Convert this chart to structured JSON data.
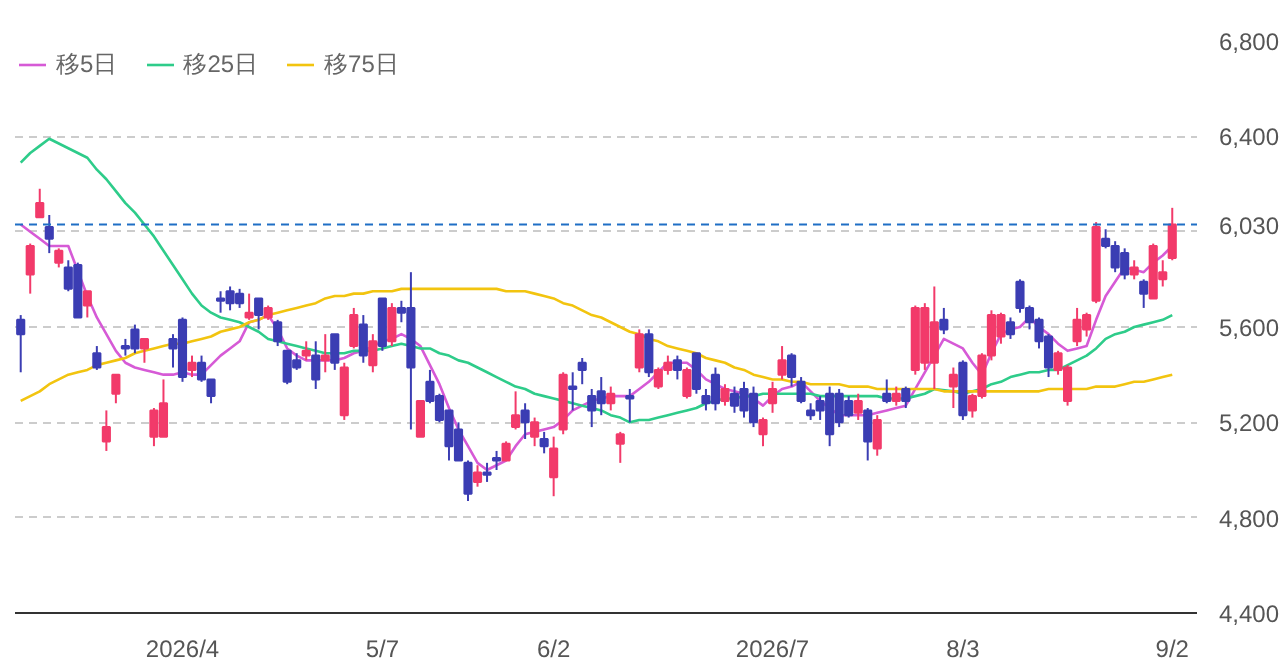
{
  "chart_data": {
    "type": "candlestick",
    "categories": [
      null,
      null,
      null,
      null,
      null,
      null,
      null,
      null,
      null,
      null,
      null,
      null,
      null,
      null,
      null,
      null,
      null,
      "2026/4",
      null,
      null,
      null,
      null,
      null,
      null,
      null,
      null,
      null,
      null,
      null,
      null,
      null,
      null,
      null,
      null,
      null,
      null,
      null,
      null,
      "5/7",
      null,
      null,
      null,
      null,
      null,
      null,
      null,
      null,
      null,
      null,
      null,
      null,
      null,
      null,
      null,
      null,
      null,
      "6/2",
      null,
      null,
      null,
      null,
      null,
      null,
      null,
      null,
      null,
      null,
      null,
      null,
      null,
      null,
      null,
      null,
      null,
      null,
      null,
      null,
      null,
      null,
      "2026/7",
      null,
      null,
      null,
      null,
      null,
      null,
      null,
      null,
      null,
      null,
      null,
      null,
      null,
      null,
      null,
      null,
      null,
      null,
      null,
      "8/3",
      null,
      null,
      null,
      null,
      null,
      null,
      null,
      null,
      null,
      null,
      null,
      null,
      null,
      null,
      null,
      null,
      null,
      null,
      null,
      null,
      null,
      "9/2"
    ],
    "ohlc": [
      [
        5630,
        5650,
        5410,
        5570
      ],
      [
        5820,
        5950,
        5740,
        5940
      ],
      [
        6060,
        6180,
        6060,
        6120
      ],
      [
        6020,
        6070,
        5910,
        5970
      ],
      [
        5870,
        5930,
        5850,
        5920
      ],
      [
        5850,
        5880,
        5750,
        5760
      ],
      [
        5860,
        5870,
        5640,
        5640
      ],
      [
        5690,
        5750,
        5640,
        5750
      ],
      [
        5490,
        5520,
        5420,
        5430
      ],
      [
        5120,
        5250,
        5080,
        5180
      ],
      [
        5320,
        5400,
        5280,
        5400
      ],
      [
        5520,
        5550,
        5480,
        5510
      ],
      [
        5590,
        5610,
        5490,
        5510
      ],
      [
        5510,
        5550,
        5450,
        5550
      ],
      [
        5140,
        5260,
        5100,
        5250
      ],
      [
        5140,
        5380,
        5140,
        5280
      ],
      [
        5550,
        5570,
        5430,
        5510
      ],
      [
        5630,
        5640,
        5370,
        5390
      ],
      [
        5420,
        5480,
        5390,
        5450
      ],
      [
        5450,
        5480,
        5370,
        5380
      ],
      [
        5380,
        5380,
        5280,
        5310
      ],
      [
        5720,
        5750,
        5660,
        5710
      ],
      [
        5750,
        5770,
        5670,
        5700
      ],
      [
        5740,
        5760,
        5680,
        5700
      ],
      [
        5640,
        5740,
        5630,
        5660
      ],
      [
        5720,
        5720,
        5590,
        5650
      ],
      [
        5640,
        5690,
        5630,
        5680
      ],
      [
        5620,
        5630,
        5520,
        5540
      ],
      [
        5500,
        5500,
        5360,
        5370
      ],
      [
        5460,
        5490,
        5420,
        5430
      ],
      [
        5480,
        5540,
        5460,
        5500
      ],
      [
        5480,
        5540,
        5340,
        5380
      ],
      [
        5460,
        5570,
        5410,
        5480
      ],
      [
        5570,
        5570,
        5420,
        5450
      ],
      [
        5230,
        5450,
        5210,
        5430
      ],
      [
        5520,
        5680,
        5510,
        5650
      ],
      [
        5610,
        5650,
        5450,
        5480
      ],
      [
        5440,
        5570,
        5410,
        5540
      ],
      [
        5720,
        5720,
        5500,
        5520
      ],
      [
        5540,
        5700,
        5520,
        5680
      ],
      [
        5680,
        5710,
        5620,
        5660
      ],
      [
        5680,
        5830,
        5170,
        5430
      ],
      [
        5140,
        5290,
        5140,
        5290
      ],
      [
        5370,
        5420,
        5280,
        5290
      ],
      [
        5310,
        5320,
        5200,
        5210
      ],
      [
        5250,
        5250,
        5040,
        5100
      ],
      [
        5170,
        5200,
        5040,
        5040
      ],
      [
        5030,
        5040,
        4870,
        4900
      ],
      [
        4950,
        5020,
        4930,
        4990
      ],
      [
        4990,
        5030,
        4950,
        4980
      ],
      [
        5050,
        5080,
        5000,
        5040
      ],
      [
        5040,
        5120,
        5040,
        5110
      ],
      [
        5180,
        5330,
        5170,
        5230
      ],
      [
        5250,
        5280,
        5130,
        5200
      ],
      [
        5140,
        5220,
        5100,
        5200
      ],
      [
        5130,
        5160,
        5070,
        5100
      ],
      [
        4970,
        5140,
        4890,
        5090
      ],
      [
        5170,
        5410,
        5150,
        5400
      ],
      [
        5350,
        5410,
        5250,
        5340
      ],
      [
        5450,
        5470,
        5360,
        5420
      ],
      [
        5310,
        5340,
        5180,
        5250
      ],
      [
        5330,
        5390,
        5230,
        5280
      ],
      [
        5280,
        5350,
        5250,
        5320
      ],
      [
        5110,
        5160,
        5030,
        5150
      ],
      [
        5310,
        5340,
        5200,
        5300
      ],
      [
        5430,
        5590,
        5410,
        5570
      ],
      [
        5570,
        5590,
        5390,
        5410
      ],
      [
        5350,
        5430,
        5340,
        5420
      ],
      [
        5420,
        5480,
        5400,
        5450
      ],
      [
        5460,
        5480,
        5380,
        5420
      ],
      [
        5310,
        5430,
        5300,
        5420
      ],
      [
        5490,
        5490,
        5320,
        5340
      ],
      [
        5310,
        5340,
        5250,
        5280
      ],
      [
        5400,
        5430,
        5250,
        5280
      ],
      [
        5290,
        5360,
        5270,
        5340
      ],
      [
        5320,
        5350,
        5240,
        5270
      ],
      [
        5340,
        5370,
        5220,
        5250
      ],
      [
        5320,
        5350,
        5180,
        5200
      ],
      [
        5150,
        5220,
        5100,
        5210
      ],
      [
        5280,
        5370,
        5240,
        5340
      ],
      [
        5400,
        5520,
        5380,
        5460
      ],
      [
        5480,
        5490,
        5350,
        5390
      ],
      [
        5370,
        5390,
        5280,
        5290
      ],
      [
        5250,
        5280,
        5210,
        5230
      ],
      [
        5290,
        5310,
        5210,
        5250
      ],
      [
        5320,
        5350,
        5100,
        5150
      ],
      [
        5320,
        5340,
        5180,
        5200
      ],
      [
        5290,
        5310,
        5220,
        5230
      ],
      [
        5240,
        5320,
        5210,
        5290
      ],
      [
        5250,
        5260,
        5040,
        5120
      ],
      [
        5090,
        5230,
        5060,
        5210
      ],
      [
        5320,
        5380,
        5280,
        5290
      ],
      [
        5290,
        5350,
        5270,
        5320
      ],
      [
        5340,
        5350,
        5260,
        5290
      ],
      [
        5420,
        5690,
        5400,
        5680
      ],
      [
        5450,
        5700,
        5420,
        5680
      ],
      [
        5450,
        5770,
        5340,
        5620
      ],
      [
        5630,
        5680,
        5570,
        5590
      ],
      [
        5350,
        5430,
        5260,
        5400
      ],
      [
        5450,
        5460,
        5210,
        5230
      ],
      [
        5250,
        5320,
        5220,
        5310
      ],
      [
        5310,
        5490,
        5300,
        5480
      ],
      [
        5480,
        5670,
        5460,
        5650
      ],
      [
        5560,
        5660,
        5530,
        5650
      ],
      [
        5620,
        5640,
        5550,
        5570
      ],
      [
        5790,
        5800,
        5660,
        5680
      ],
      [
        5680,
        5690,
        5590,
        5620
      ],
      [
        5630,
        5640,
        5510,
        5540
      ],
      [
        5560,
        5570,
        5390,
        5430
      ],
      [
        5420,
        5500,
        5400,
        5490
      ],
      [
        5290,
        5440,
        5270,
        5430
      ],
      [
        5540,
        5680,
        5520,
        5630
      ],
      [
        5590,
        5660,
        5560,
        5650
      ],
      [
        5710,
        6040,
        5700,
        6020
      ],
      [
        5970,
        6010,
        5930,
        5940
      ],
      [
        5940,
        5960,
        5830,
        5850
      ],
      [
        5910,
        5930,
        5800,
        5820
      ],
      [
        5820,
        5880,
        5800,
        5850
      ],
      [
        5790,
        5800,
        5680,
        5740
      ],
      [
        5720,
        5950,
        5720,
        5940
      ],
      [
        5800,
        5880,
        5770,
        5830
      ],
      [
        5890,
        6100,
        5880,
        6030
      ]
    ],
    "colors": [
      "#3b3db3",
      "#f23a6a",
      "#f23a6a",
      "#3b3db3",
      "#f23a6a",
      "#3b3db3",
      "#3b3db3",
      "#f23a6a",
      "#3b3db3",
      "#f23a6a",
      "#f23a6a",
      "#3b3db3",
      "#3b3db3",
      "#f23a6a",
      "#f23a6a",
      "#f23a6a",
      "#3b3db3",
      "#3b3db3",
      "#f23a6a",
      "#3b3db3",
      "#3b3db3",
      "#3b3db3",
      "#3b3db3",
      "#3b3db3",
      "#f23a6a",
      "#3b3db3",
      "#f23a6a",
      "#3b3db3",
      "#3b3db3",
      "#3b3db3",
      "#f23a6a",
      "#3b3db3",
      "#f23a6a",
      "#3b3db3",
      "#f23a6a",
      "#f23a6a",
      "#3b3db3",
      "#f23a6a",
      "#3b3db3",
      "#f23a6a",
      "#3b3db3",
      "#3b3db3",
      "#f23a6a",
      "#3b3db3",
      "#3b3db3",
      "#3b3db3",
      "#3b3db3",
      "#3b3db3",
      "#f23a6a",
      "#3b3db3",
      "#3b3db3",
      "#f23a6a",
      "#f23a6a",
      "#3b3db3",
      "#f23a6a",
      "#3b3db3",
      "#f23a6a",
      "#f23a6a",
      "#3b3db3",
      "#3b3db3",
      "#3b3db3",
      "#3b3db3",
      "#f23a6a",
      "#f23a6a",
      "#3b3db3",
      "#f23a6a",
      "#3b3db3",
      "#f23a6a",
      "#f23a6a",
      "#3b3db3",
      "#f23a6a",
      "#3b3db3",
      "#3b3db3",
      "#3b3db3",
      "#f23a6a",
      "#3b3db3",
      "#3b3db3",
      "#3b3db3",
      "#f23a6a",
      "#f23a6a",
      "#f23a6a",
      "#3b3db3",
      "#3b3db3",
      "#3b3db3",
      "#3b3db3",
      "#3b3db3",
      "#3b3db3",
      "#3b3db3",
      "#f23a6a",
      "#3b3db3",
      "#f23a6a",
      "#3b3db3",
      "#f23a6a",
      "#3b3db3",
      "#f23a6a",
      "#f23a6a",
      "#f23a6a",
      "#3b3db3",
      "#f23a6a",
      "#3b3db3",
      "#f23a6a",
      "#f23a6a",
      "#f23a6a",
      "#f23a6a",
      "#3b3db3",
      "#3b3db3",
      "#3b3db3",
      "#3b3db3",
      "#3b3db3",
      "#f23a6a",
      "#f23a6a",
      "#f23a6a",
      "#f23a6a",
      "#f23a6a",
      "#3b3db3",
      "#3b3db3",
      "#3b3db3",
      "#f23a6a",
      "#3b3db3",
      "#f23a6a",
      "#f23a6a",
      "#f23a6a"
    ],
    "series": [
      {
        "type": "line",
        "name": "移5日",
        "color": "#d65ad6",
        "values": [
          6030,
          6000,
          5970,
          5940,
          5940,
          5940,
          null,
          5730,
          5640,
          5570,
          5500,
          5450,
          5430,
          5420,
          5410,
          5400,
          5400,
          5410,
          5400,
          5400,
          5440,
          5480,
          5510,
          5540,
          5620,
          5630,
          5650,
          5590,
          5510,
          5480,
          5460,
          5460,
          5460,
          5460,
          5470,
          5490,
          5500,
          5520,
          5540,
          5550,
          5570,
          5550,
          5520,
          5440,
          5360,
          5260,
          5170,
          5100,
          5030,
          5000,
          5020,
          5040,
          5100,
          5150,
          5160,
          5170,
          5180,
          5210,
          5250,
          5270,
          5290,
          5300,
          5310,
          5310,
          5310,
          5340,
          5370,
          5410,
          5450,
          5450,
          5450,
          5420,
          5380,
          5360,
          5340,
          5330,
          5320,
          5300,
          5270,
          5310,
          5340,
          5350,
          5370,
          5330,
          5290,
          5260,
          5230,
          5230,
          5230,
          5230,
          5240,
          5250,
          5260,
          5270,
          5340,
          5410,
          5480,
          5550,
          5530,
          5510,
          5450,
          5400,
          5490,
          5570,
          5590,
          5600,
          5640,
          5600,
          5570,
          5530,
          5500,
          5510,
          5520,
          5630,
          5730,
          5790,
          5850,
          5840,
          5830,
          5870,
          5900,
          5940
        ]
      },
      {
        "type": "line",
        "name": "移25日",
        "color": "#2ecc8a",
        "values": [
          6290,
          6330,
          6360,
          6390,
          6370,
          6350,
          6330,
          6310,
          6260,
          6220,
          6170,
          6120,
          6080,
          6030,
          5980,
          5920,
          5860,
          5800,
          5740,
          5690,
          5660,
          5640,
          5630,
          5620,
          5600,
          5580,
          5550,
          5540,
          5530,
          5520,
          5510,
          5500,
          5490,
          5490,
          5490,
          5500,
          5500,
          5500,
          5510,
          5520,
          5530,
          5520,
          5510,
          5510,
          5490,
          5480,
          5460,
          5450,
          5430,
          5410,
          5390,
          5370,
          5350,
          5340,
          5320,
          5310,
          5300,
          5290,
          5280,
          5270,
          5260,
          5250,
          5230,
          5220,
          5200,
          5210,
          5210,
          5220,
          5230,
          5240,
          5250,
          5260,
          5280,
          5290,
          5300,
          5300,
          5310,
          5310,
          5320,
          5320,
          5320,
          5320,
          5320,
          5320,
          5310,
          5310,
          5310,
          5310,
          5310,
          5310,
          5310,
          5300,
          5300,
          5300,
          5310,
          5320,
          5340,
          null,
          5330,
          5320,
          5330,
          5340,
          5360,
          5370,
          5390,
          5400,
          5410,
          5410,
          5420,
          5420,
          5440,
          5460,
          5480,
          5510,
          5550,
          5570,
          5580,
          5600,
          5610,
          5620,
          5630,
          5650
        ]
      },
      {
        "type": "line",
        "name": "移75日",
        "color": "#f2c40f",
        "values": [
          5290,
          5310,
          5330,
          5360,
          5380,
          5400,
          5410,
          5420,
          5440,
          5450,
          5460,
          5470,
          5490,
          5500,
          5510,
          5520,
          5530,
          5530,
          5540,
          5550,
          5560,
          5580,
          5590,
          5600,
          5620,
          5630,
          5650,
          5660,
          5670,
          5680,
          5690,
          5700,
          5720,
          5730,
          5730,
          5740,
          5740,
          5750,
          5750,
          5750,
          5760,
          5760,
          5760,
          5760,
          5760,
          5760,
          5760,
          5760,
          5760,
          5760,
          5760,
          5750,
          5750,
          5750,
          5740,
          5730,
          5720,
          5700,
          5690,
          5670,
          5650,
          5640,
          5620,
          5600,
          5580,
          5570,
          5550,
          5540,
          5520,
          5510,
          5500,
          5490,
          5470,
          5460,
          5450,
          5430,
          5420,
          5400,
          5390,
          5380,
          5380,
          5370,
          5370,
          5360,
          5360,
          5360,
          5360,
          5350,
          5350,
          5350,
          5340,
          5340,
          5340,
          5340,
          5340,
          5340,
          5340,
          5330,
          5330,
          5330,
          5330,
          5330,
          5330,
          5330,
          5330,
          5330,
          5330,
          5330,
          5340,
          5340,
          5340,
          5340,
          5340,
          5350,
          5350,
          5350,
          5360,
          5370,
          5370,
          5380,
          5390,
          5400
        ]
      }
    ],
    "ylim": [
      4400,
      6800
    ],
    "yticks": [
      {
        "value": 4400,
        "label": "4,400"
      },
      {
        "value": 4800,
        "label": "4,800"
      },
      {
        "value": 5200,
        "label": "5,200"
      },
      {
        "value": 5600,
        "label": "5,600"
      },
      {
        "value": 6000,
        "label": null
      },
      {
        "value": 6400,
        "label": "6,400"
      },
      {
        "value": 6800,
        "label": "6,800"
      }
    ],
    "grid": "y",
    "legend": "top left",
    "ref_lines": [
      {
        "axis": "y",
        "value": 6030,
        "label": "6,030",
        "color": "#1f6fc5",
        "line_style": "dashed"
      }
    ]
  }
}
